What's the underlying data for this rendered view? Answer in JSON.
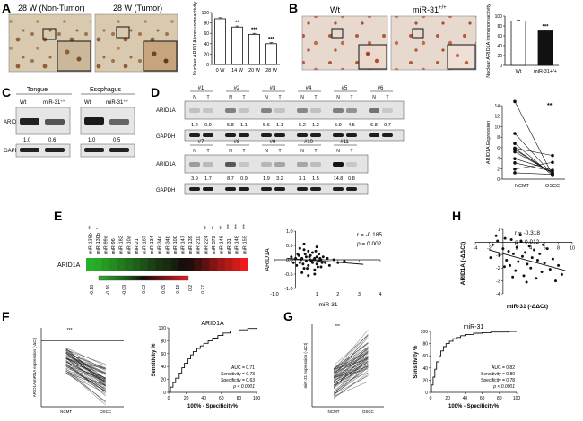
{
  "panels": {
    "A": {
      "label": "A",
      "img_left_title": "28 W (Non-Tumor)",
      "img_right_title": "28 W (Tumor)"
    },
    "B": {
      "label": "B",
      "img_left_title": "Wt",
      "img_right_title": "miR-31",
      "img_right_sup": "+/+"
    },
    "C": {
      "label": "C",
      "col_left": "Tongue",
      "col_right": "Esophagus",
      "lane_wt": "Wt",
      "lane_mir": "miR-31",
      "lane_sup": "+/+",
      "row_arid": "ARID1A",
      "row_gapdh": "GAPDH",
      "vals_left": [
        "1.0",
        "0.6"
      ],
      "vals_right": [
        "1.0",
        "0.5"
      ]
    },
    "D": {
      "label": "D",
      "row_arid": "ARID1A",
      "row_gapdh": "GAPDH",
      "n_label": "N",
      "t_label": "T",
      "top_cases": [
        "#1",
        "#2",
        "#3",
        "#4",
        "#5",
        "#6"
      ],
      "top_vals": [
        "1.2",
        "0.9",
        "5.8",
        "1.1",
        "5.6",
        "1.1",
        "5.2",
        "1.2",
        "5.9",
        "4.5",
        "6.8",
        "0.7"
      ],
      "bottom_cases": [
        "#7",
        "#8",
        "#9",
        "#10",
        "#11"
      ],
      "bottom_vals": [
        "3.9",
        "1.7",
        "8.7",
        "0.9",
        "1.9",
        "3.2",
        "3.1",
        "1.5",
        "14.8",
        "0.8"
      ]
    },
    "E": {
      "label": "E",
      "row_label": "ARID1A",
      "mirnas": [
        "miR-135b",
        "miR-130b",
        "miR-99a",
        "miR-96",
        "miR-182",
        "miR-10a",
        "miR-21",
        "miR-187",
        "miR-134",
        "miR-34c",
        "miR-34b",
        "miR-100",
        "miR-147",
        "miR-139",
        "miR-211",
        "miR-224",
        "miR-372",
        "miR-149",
        "miR-31",
        "miR-146",
        "miR-155"
      ],
      "sig": [
        "**",
        "*",
        "",
        "",
        "",
        "",
        "",
        "",
        "",
        "",
        "",
        "",
        "",
        "",
        "",
        "**",
        "**",
        "**",
        "***",
        "***",
        "***"
      ],
      "scale": [
        "-0.18",
        "-0.16",
        "-0.09",
        "-0.02",
        "0.05",
        "0.13",
        "0.2",
        "0.27"
      ],
      "scatter": {
        "ylabel": "ARID1A",
        "xlabel": "miR-31",
        "r": "r = -0.185",
        "p_label": "p",
        "p_value": " = 0.002"
      }
    },
    "F": {
      "label": "F",
      "ylabel": "ARID1A mRNA expression (-ΔCt)",
      "x1": "NCMT",
      "x2": "OSCC",
      "sig": "***",
      "roc": {
        "title": "ARID1A",
        "ylabel": "Sensitivity %",
        "xlabel": "100% - Specificity%",
        "auc": "AUC = 0.71",
        "sens": "Sensitivity = 0.73",
        "spec": "Specificity = 0.63",
        "p": "p < 0.0001"
      }
    },
    "G": {
      "label": "G",
      "ylabel": "miR-31 expression (-ΔCt)",
      "x1": "NCMT",
      "x2": "OSCC",
      "sig": "***",
      "roc": {
        "title": "miR-31",
        "ylabel": "Sensitivity %",
        "xlabel": "100% - Specificity%",
        "auc": "AUC = 0.82",
        "sens": "Sensitivity = 0.80",
        "spec": "Specificity = 0.78",
        "p": "p < 0.0001"
      }
    },
    "H": {
      "label": "H",
      "ylabel": "ARID1A (-ΔΔCt)",
      "xlabel": "miR-31 (-ΔΔCt)",
      "r": "r = -0.318",
      "p_label": "p",
      "p_value": " = 0.012"
    }
  },
  "chart_data": [
    {
      "id": "A-bar",
      "type": "bar",
      "categories": [
        "0 W",
        "14 W",
        "20 W",
        "28 W"
      ],
      "values": [
        88,
        72,
        58,
        40
      ],
      "errors": [
        2,
        2,
        2,
        2
      ],
      "sig": [
        "",
        "**",
        "***",
        "***"
      ],
      "ylabel": "Nuclear ARID1A immunoreactivity",
      "ylim": [
        0,
        100
      ],
      "yticks": [
        "0",
        "20",
        "40",
        "60",
        "80",
        "100"
      ]
    },
    {
      "id": "B-bar",
      "type": "bar",
      "categories": [
        "Wt",
        "miR-31+/+"
      ],
      "values": [
        90,
        70
      ],
      "errors": [
        2,
        2
      ],
      "sig": [
        "",
        "***"
      ],
      "colors": [
        "#ffffff",
        "#111111"
      ],
      "ylabel": "Nuclear ARID1A immunoreactivity",
      "ylim": [
        0,
        100
      ],
      "yticks": [
        "0",
        "20",
        "40",
        "60",
        "80",
        "100"
      ]
    },
    {
      "id": "D-paired",
      "type": "line",
      "ylabel": "ARID1A Expression",
      "categories": [
        "NCMT",
        "OSCC"
      ],
      "sig": "**",
      "pairs": [
        [
          14.8,
          0.8
        ],
        [
          8.7,
          0.9
        ],
        [
          6.8,
          0.7
        ],
        [
          5.9,
          4.5
        ],
        [
          5.8,
          1.1
        ],
        [
          5.6,
          1.1
        ],
        [
          5.2,
          1.2
        ],
        [
          3.9,
          1.7
        ],
        [
          3.1,
          1.5
        ],
        [
          1.9,
          3.2
        ],
        [
          1.2,
          0.9
        ]
      ],
      "ylim": [
        0,
        14
      ],
      "yticks": [
        "0",
        "2",
        "4",
        "6",
        "8",
        "10",
        "12",
        "14"
      ]
    },
    {
      "id": "E-heatmap",
      "type": "heatmap",
      "values": [
        -0.18,
        -0.17,
        -0.15,
        -0.13,
        -0.11,
        -0.09,
        -0.07,
        -0.05,
        -0.03,
        -0.01,
        0.0,
        0.02,
        0.04,
        0.06,
        0.09,
        0.12,
        0.16,
        0.19,
        0.21,
        0.24,
        0.27
      ],
      "range": [
        -0.18,
        0.27
      ]
    },
    {
      "id": "E-scatter",
      "type": "scatter",
      "xlabel": "miR-31",
      "ylabel": "ARID1A",
      "xlim": [
        -1,
        4
      ],
      "ylim": [
        -1,
        1
      ],
      "xticks": [
        "-1.0",
        "0",
        "1",
        "2",
        "3",
        "4"
      ],
      "yticks": [
        "-1.0",
        "-0.5",
        "0.0",
        "0.5",
        "1.0"
      ],
      "fit": [
        [
          -0.4,
          0.05
        ],
        [
          3.2,
          -0.16
        ]
      ],
      "points": [
        [
          0.1,
          0.2
        ],
        [
          0.2,
          -0.1
        ],
        [
          0.3,
          0.05
        ],
        [
          0.4,
          -0.3
        ],
        [
          0.5,
          0.1
        ],
        [
          0.5,
          -0.05
        ],
        [
          0.6,
          0.3
        ],
        [
          0.6,
          -0.2
        ],
        [
          0.7,
          0.0
        ],
        [
          0.7,
          0.15
        ],
        [
          0.8,
          -0.1
        ],
        [
          0.8,
          0.25
        ],
        [
          0.9,
          -0.35
        ],
        [
          0.9,
          0.05
        ],
        [
          1.0,
          0.1
        ],
        [
          1.0,
          -0.15
        ],
        [
          1.1,
          0.2
        ],
        [
          1.1,
          -0.05
        ],
        [
          1.2,
          0.0
        ],
        [
          1.2,
          -0.25
        ],
        [
          1.3,
          0.1
        ],
        [
          1.4,
          -0.1
        ],
        [
          1.5,
          0.05
        ],
        [
          1.6,
          -0.2
        ],
        [
          1.8,
          0.0
        ],
        [
          2.0,
          -0.1
        ],
        [
          2.3,
          -0.05
        ],
        [
          0.2,
          0.4
        ],
        [
          0.4,
          0.35
        ],
        [
          0.3,
          -0.45
        ],
        [
          -0.2,
          0.1
        ],
        [
          -0.1,
          -0.1
        ],
        [
          0.0,
          0.05
        ],
        [
          0.05,
          -0.2
        ],
        [
          0.15,
          0.15
        ],
        [
          0.25,
          0.0
        ],
        [
          0.35,
          -0.15
        ],
        [
          0.45,
          0.2
        ],
        [
          0.55,
          -0.3
        ],
        [
          0.65,
          0.1
        ],
        [
          0.75,
          -0.05
        ],
        [
          0.85,
          0.0
        ],
        [
          0.95,
          0.3
        ],
        [
          1.05,
          -0.25
        ],
        [
          1.15,
          0.05
        ],
        [
          1.25,
          -0.1
        ],
        [
          0.6,
          -0.55
        ],
        [
          0.9,
          -0.5
        ],
        [
          0.4,
          0.55
        ],
        [
          1.0,
          0.45
        ]
      ]
    },
    {
      "id": "F-paired",
      "type": "line",
      "ylabel": "ARID1A mRNA expression (-ΔCt)",
      "categories": [
        "NCMT",
        "OSCC"
      ],
      "ylim": [
        -10,
        2
      ]
    },
    {
      "id": "F-roc",
      "type": "line",
      "title": "ARID1A",
      "xlabel": "100% - Specificity%",
      "ylabel": "Sensitivity %",
      "xlim": [
        0,
        100
      ],
      "ylim": [
        0,
        100
      ],
      "xticks": [
        "0",
        "20",
        "40",
        "60",
        "80",
        "100"
      ],
      "yticks": [
        "0",
        "20",
        "40",
        "60",
        "80",
        "100"
      ],
      "x": [
        0,
        2,
        5,
        8,
        12,
        15,
        18,
        22,
        25,
        28,
        32,
        36,
        40,
        45,
        50,
        56,
        62,
        70,
        80,
        90,
        100
      ],
      "y": [
        0,
        8,
        15,
        22,
        30,
        38,
        45,
        52,
        58,
        63,
        68,
        72,
        76,
        80,
        84,
        88,
        92,
        95,
        97,
        99,
        100
      ]
    },
    {
      "id": "G-paired",
      "type": "line",
      "ylabel": "miR-31 expression (-ΔCt)",
      "categories": [
        "NCMT",
        "OSCC"
      ],
      "ylim": [
        -10,
        10
      ]
    },
    {
      "id": "G-roc",
      "type": "line",
      "title": "miR-31",
      "xlabel": "100% - Specificity%",
      "ylabel": "Sensitivity %",
      "xlim": [
        0,
        100
      ],
      "ylim": [
        0,
        100
      ],
      "xticks": [
        "0",
        "20",
        "40",
        "60",
        "80",
        "100"
      ],
      "yticks": [
        "0",
        "20",
        "40",
        "60",
        "80",
        "100"
      ],
      "x": [
        0,
        1,
        3,
        5,
        7,
        10,
        12,
        15,
        18,
        22,
        26,
        30,
        35,
        40,
        50,
        60,
        70,
        80,
        90,
        100
      ],
      "y": [
        0,
        12,
        25,
        38,
        50,
        60,
        68,
        75,
        80,
        84,
        88,
        90,
        93,
        95,
        97,
        98,
        99,
        99,
        100,
        100
      ]
    },
    {
      "id": "H-scatter",
      "type": "scatter",
      "xlabel": "miR-31 (-ΔΔCt)",
      "ylabel": "ARID1A (-ΔΔCt)",
      "xlim": [
        -4,
        10
      ],
      "ylim": [
        -4,
        1
      ],
      "xticks": [
        "-4",
        "-2",
        "2",
        "4",
        "6",
        "8",
        "10"
      ],
      "yticks": [
        "-4",
        "-3",
        "-2",
        "-1",
        "1"
      ],
      "fit": [
        [
          -2,
          -0.6
        ],
        [
          9,
          -2.2
        ]
      ],
      "points": [
        [
          -1.5,
          -0.2
        ],
        [
          -1,
          0.5
        ],
        [
          -0.5,
          -1.0
        ],
        [
          0,
          -0.5
        ],
        [
          0.3,
          0.3
        ],
        [
          0.5,
          -1.4
        ],
        [
          0.8,
          -0.7
        ],
        [
          1,
          -1.8
        ],
        [
          1.2,
          0.2
        ],
        [
          1.5,
          -0.9
        ],
        [
          1.8,
          -2.2
        ],
        [
          2,
          -0.4
        ],
        [
          2.2,
          -1.5
        ],
        [
          2.5,
          0.6
        ],
        [
          2.8,
          -1.1
        ],
        [
          3,
          -2.6
        ],
        [
          3.2,
          -0.8
        ],
        [
          3.5,
          -1.7
        ],
        [
          3.8,
          -0.3
        ],
        [
          4,
          -2.0
        ],
        [
          4.2,
          -1.2
        ],
        [
          4.5,
          -0.6
        ],
        [
          4.8,
          -2.8
        ],
        [
          5,
          -1.4
        ],
        [
          5.3,
          -0.9
        ],
        [
          5.6,
          -2.3
        ],
        [
          6,
          -1.6
        ],
        [
          6.4,
          -0.5
        ],
        [
          6.8,
          -2.1
        ],
        [
          7.2,
          -1.3
        ],
        [
          7.6,
          -3.0
        ],
        [
          8,
          -1.8
        ],
        [
          -0.8,
          0.1
        ],
        [
          0.2,
          -1.9
        ],
        [
          1.4,
          -2.7
        ],
        [
          2.6,
          0.1
        ],
        [
          3.4,
          -3.1
        ],
        [
          5.8,
          -0.2
        ],
        [
          -1.8,
          -1.2
        ],
        [
          8.5,
          -2.5
        ]
      ]
    }
  ]
}
